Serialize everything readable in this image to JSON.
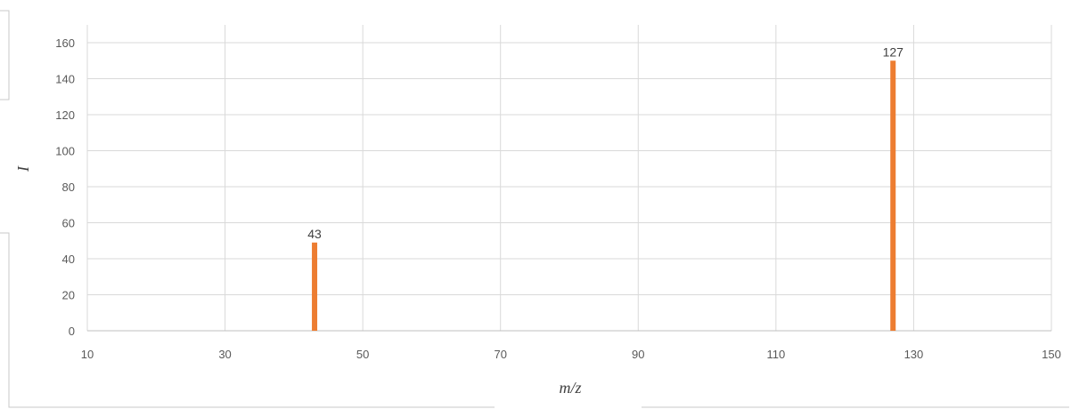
{
  "chart_data": {
    "type": "bar",
    "xlabel": "m/z",
    "ylabel": "I",
    "xlim": [
      10,
      150
    ],
    "ylim": [
      0,
      160
    ],
    "xticks": [
      10,
      30,
      50,
      70,
      90,
      110,
      130,
      150
    ],
    "yticks": [
      0,
      20,
      40,
      60,
      80,
      100,
      120,
      140,
      160
    ],
    "grid": true,
    "points": [
      {
        "x": 43,
        "y": 49,
        "label": "43"
      },
      {
        "x": 127,
        "y": 150,
        "label": "127"
      }
    ],
    "bar_color": "#ED7D31"
  }
}
